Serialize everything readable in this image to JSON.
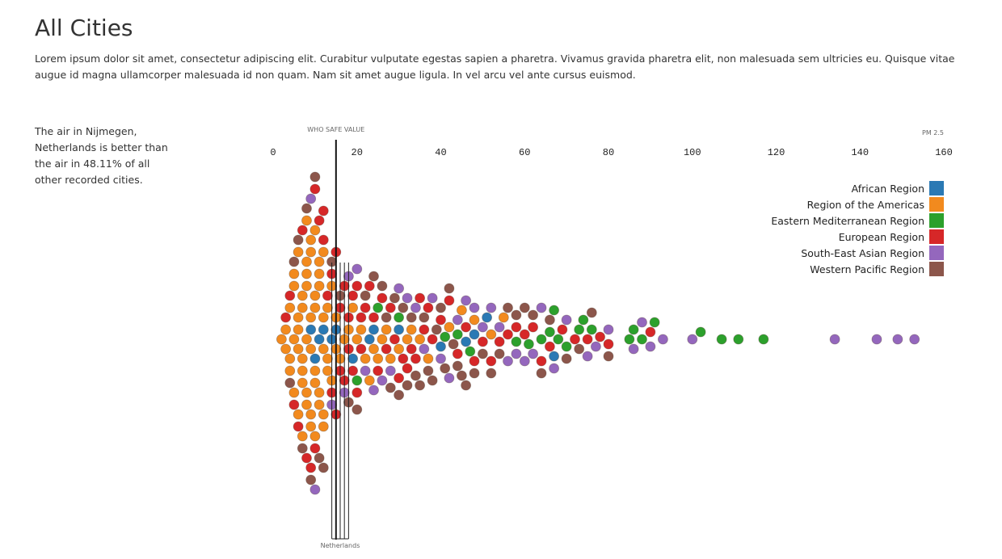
{
  "page": {
    "title": "All Cities",
    "intro": "Lorem ipsum dolor sit amet, consectetur adipiscing elit. Curabitur vulputate egestas sapien a pharetra. Vivamus gravida pharetra elit, non malesuada sem ultricies eu. Quisque vitae augue id magna ullamcorper malesuada id non quam. Nam sit amet augue ligula. In vel arcu vel ante cursus euismod.",
    "side_note": "The air in Nijmegen, Netherlands is better than the air in 48.11% of all other recorded cities."
  },
  "chart_data": {
    "type": "scatter",
    "title": "",
    "xlabel": "PM 2.5",
    "ylabel": "",
    "xlim": [
      0,
      160
    ],
    "ticks": [
      0,
      20,
      40,
      60,
      80,
      100,
      120,
      140,
      160
    ],
    "grid": false,
    "legend_position": "right",
    "reference_line": {
      "label": "WHO SAFE VALUE",
      "value": 15
    },
    "highlight": {
      "label": "Netherlands",
      "values": [
        14,
        15,
        16,
        17,
        18
      ]
    },
    "series": [
      {
        "name": "African Region",
        "color": "#2a79b4",
        "values": [
          9,
          10,
          11,
          12,
          14,
          15,
          19,
          23,
          24,
          30,
          40,
          46,
          48,
          51,
          67
        ]
      },
      {
        "name": "Region of the Americas",
        "color": "#f28a1e",
        "values": [
          2,
          3,
          3,
          4,
          4,
          4,
          5,
          5,
          5,
          5,
          6,
          6,
          6,
          6,
          6,
          7,
          7,
          7,
          7,
          7,
          7,
          8,
          8,
          8,
          8,
          8,
          8,
          8,
          9,
          9,
          9,
          9,
          9,
          9,
          10,
          10,
          10,
          10,
          10,
          10,
          11,
          11,
          11,
          11,
          11,
          12,
          12,
          12,
          12,
          12,
          13,
          13,
          13,
          14,
          14,
          15,
          15,
          16,
          17,
          18,
          19,
          20,
          21,
          22,
          23,
          24,
          25,
          26,
          27,
          28,
          30,
          32,
          33,
          35,
          37,
          42,
          45,
          48,
          52,
          55
        ]
      },
      {
        "name": "Eastern Mediterranean Region",
        "color": "#2ca02c",
        "values": [
          20,
          25,
          30,
          41,
          44,
          47,
          58,
          61,
          64,
          66,
          67,
          68,
          70,
          73,
          74,
          76,
          85,
          86,
          88,
          91,
          102,
          107,
          111,
          117
        ]
      },
      {
        "name": "European Region",
        "color": "#d62728",
        "values": [
          3,
          4,
          5,
          6,
          7,
          8,
          9,
          10,
          10,
          11,
          12,
          12,
          13,
          14,
          14,
          15,
          15,
          16,
          16,
          17,
          17,
          18,
          18,
          19,
          19,
          20,
          20,
          21,
          21,
          22,
          23,
          24,
          25,
          26,
          27,
          28,
          29,
          30,
          31,
          32,
          33,
          34,
          35,
          36,
          37,
          38,
          40,
          42,
          44,
          46,
          48,
          50,
          52,
          54,
          56,
          58,
          60,
          62,
          64,
          66,
          69,
          72,
          75,
          78,
          80,
          90
        ]
      },
      {
        "name": "South-East Asian Region",
        "color": "#9467bd",
        "values": [
          9,
          10,
          14,
          17,
          18,
          20,
          22,
          24,
          26,
          28,
          30,
          32,
          34,
          36,
          38,
          40,
          42,
          44,
          46,
          48,
          50,
          52,
          54,
          56,
          58,
          60,
          62,
          64,
          67,
          70,
          75,
          77,
          80,
          86,
          88,
          90,
          93,
          100,
          134,
          144,
          149,
          153
        ]
      },
      {
        "name": "Western Pacific Region",
        "color": "#8c564b",
        "values": [
          4,
          5,
          6,
          7,
          8,
          9,
          10,
          11,
          12,
          14,
          16,
          18,
          20,
          22,
          24,
          26,
          27,
          28,
          29,
          30,
          31,
          32,
          33,
          34,
          35,
          36,
          37,
          38,
          39,
          40,
          41,
          42,
          43,
          44,
          45,
          46,
          48,
          50,
          52,
          54,
          56,
          58,
          60,
          62,
          64,
          66,
          70,
          73,
          76,
          80
        ]
      }
    ]
  }
}
